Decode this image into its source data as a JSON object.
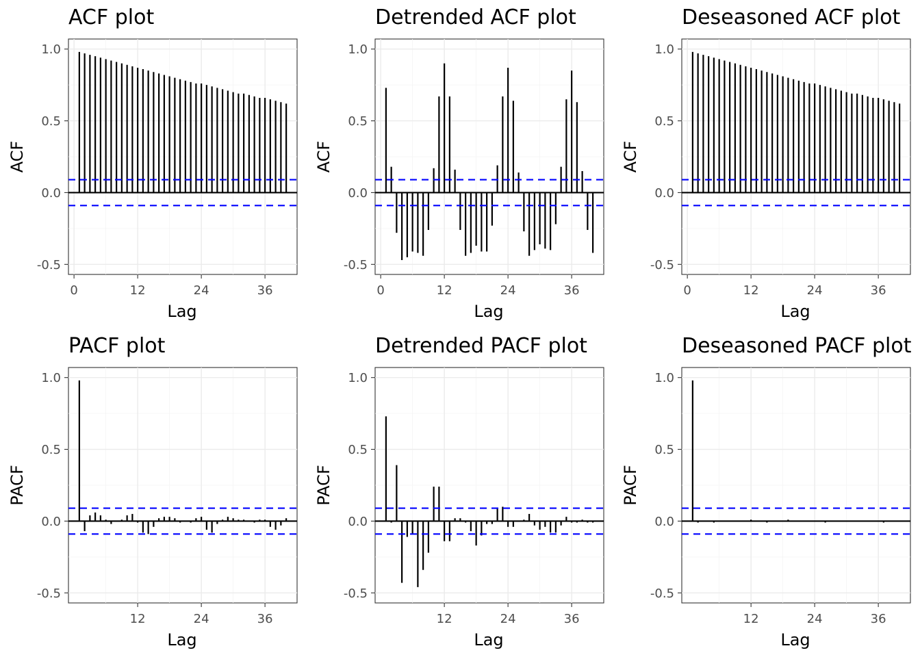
{
  "chart_data": [
    {
      "type": "bar",
      "title": "ACF plot",
      "xlabel": "Lag",
      "ylabel": "ACF",
      "ylim": [
        -0.5,
        1.0
      ],
      "yticks": [
        -0.5,
        0.0,
        0.5,
        1.0
      ],
      "ytick_labels": [
        "-0.5",
        "0.0",
        "0.5",
        "1.0"
      ],
      "xticks": [
        0,
        12,
        24,
        36
      ],
      "xtick_labels": [
        "0",
        "12",
        "24",
        "36"
      ],
      "ci": 0.09,
      "series": [
        {
          "lags": [
            1,
            2,
            3,
            4,
            5,
            6,
            7,
            8,
            9,
            10,
            11,
            12,
            13,
            14,
            15,
            16,
            17,
            18,
            19,
            20,
            21,
            22,
            23,
            24,
            25,
            26,
            27,
            28,
            29,
            30,
            31,
            32,
            33,
            34,
            35,
            36,
            37,
            38,
            39,
            40
          ],
          "values": [
            0.98,
            0.97,
            0.96,
            0.95,
            0.94,
            0.93,
            0.92,
            0.91,
            0.9,
            0.89,
            0.88,
            0.87,
            0.86,
            0.85,
            0.84,
            0.83,
            0.82,
            0.81,
            0.8,
            0.79,
            0.78,
            0.77,
            0.76,
            0.76,
            0.75,
            0.74,
            0.73,
            0.72,
            0.71,
            0.7,
            0.69,
            0.69,
            0.68,
            0.67,
            0.66,
            0.66,
            0.65,
            0.64,
            0.63,
            0.62
          ]
        }
      ]
    },
    {
      "type": "bar",
      "title": "Detrended ACF plot",
      "xlabel": "Lag",
      "ylabel": "ACF",
      "ylim": [
        -0.5,
        1.0
      ],
      "yticks": [
        -0.5,
        0.0,
        0.5,
        1.0
      ],
      "ytick_labels": [
        "-0.5",
        "0.0",
        "0.5",
        "1.0"
      ],
      "xticks": [
        0,
        12,
        24,
        36
      ],
      "xtick_labels": [
        "0",
        "12",
        "24",
        "36"
      ],
      "ci": 0.09,
      "series": [
        {
          "lags": [
            1,
            2,
            3,
            4,
            5,
            6,
            7,
            8,
            9,
            10,
            11,
            12,
            13,
            14,
            15,
            16,
            17,
            18,
            19,
            20,
            21,
            22,
            23,
            24,
            25,
            26,
            27,
            28,
            29,
            30,
            31,
            32,
            33,
            34,
            35,
            36,
            37,
            38,
            39,
            40
          ],
          "values": [
            0.73,
            0.18,
            -0.28,
            -0.47,
            -0.45,
            -0.41,
            -0.42,
            -0.44,
            -0.26,
            0.17,
            0.67,
            0.9,
            0.67,
            0.16,
            -0.26,
            -0.44,
            -0.42,
            -0.37,
            -0.41,
            -0.41,
            -0.23,
            0.19,
            0.67,
            0.87,
            0.64,
            0.14,
            -0.27,
            -0.44,
            -0.4,
            -0.36,
            -0.39,
            -0.4,
            -0.22,
            0.18,
            0.65,
            0.85,
            0.63,
            0.15,
            -0.26,
            -0.42
          ]
        }
      ]
    },
    {
      "type": "bar",
      "title": "Deseasoned ACF plot",
      "xlabel": "Lag",
      "ylabel": "ACF",
      "ylim": [
        -0.5,
        1.0
      ],
      "yticks": [
        -0.5,
        0.0,
        0.5,
        1.0
      ],
      "ytick_labels": [
        "-0.5",
        "0.0",
        "0.5",
        "1.0"
      ],
      "xticks": [
        0,
        12,
        24,
        36
      ],
      "xtick_labels": [
        "0",
        "12",
        "24",
        "36"
      ],
      "ci": 0.09,
      "series": [
        {
          "lags": [
            1,
            2,
            3,
            4,
            5,
            6,
            7,
            8,
            9,
            10,
            11,
            12,
            13,
            14,
            15,
            16,
            17,
            18,
            19,
            20,
            21,
            22,
            23,
            24,
            25,
            26,
            27,
            28,
            29,
            30,
            31,
            32,
            33,
            34,
            35,
            36,
            37,
            38,
            39,
            40
          ],
          "values": [
            0.98,
            0.97,
            0.96,
            0.95,
            0.94,
            0.93,
            0.92,
            0.91,
            0.9,
            0.89,
            0.88,
            0.87,
            0.86,
            0.85,
            0.84,
            0.83,
            0.82,
            0.81,
            0.8,
            0.79,
            0.78,
            0.77,
            0.76,
            0.76,
            0.75,
            0.74,
            0.73,
            0.72,
            0.71,
            0.7,
            0.69,
            0.69,
            0.68,
            0.67,
            0.66,
            0.66,
            0.65,
            0.64,
            0.63,
            0.62
          ]
        }
      ]
    },
    {
      "type": "bar",
      "title": "PACF plot",
      "xlabel": "Lag",
      "ylabel": "PACF",
      "ylim": [
        -0.5,
        1.0
      ],
      "yticks": [
        -0.5,
        0.0,
        0.5,
        1.0
      ],
      "ytick_labels": [
        "-0.5",
        "0.0",
        "0.5",
        "1.0"
      ],
      "xticks": [
        12,
        24,
        36
      ],
      "xtick_labels": [
        "12",
        "24",
        "36"
      ],
      "ci": 0.09,
      "series": [
        {
          "lags": [
            1,
            2,
            3,
            4,
            5,
            6,
            7,
            8,
            9,
            10,
            11,
            12,
            13,
            14,
            15,
            16,
            17,
            18,
            19,
            20,
            21,
            22,
            23,
            24,
            25,
            26,
            27,
            28,
            29,
            30,
            31,
            32,
            33,
            34,
            35,
            36,
            37,
            38,
            39,
            40
          ],
          "values": [
            0.98,
            -0.07,
            0.04,
            0.06,
            0.04,
            0.01,
            -0.02,
            0.0,
            0.01,
            0.04,
            0.05,
            -0.01,
            -0.08,
            -0.09,
            -0.04,
            0.02,
            0.03,
            0.03,
            0.02,
            -0.01,
            0.0,
            -0.01,
            0.02,
            0.03,
            -0.06,
            -0.08,
            -0.02,
            0.01,
            0.03,
            0.02,
            0.01,
            0.01,
            0.0,
            -0.01,
            0.01,
            0.01,
            -0.04,
            -0.06,
            -0.03,
            0.02
          ]
        }
      ]
    },
    {
      "type": "bar",
      "title": "Detrended PACF plot",
      "xlabel": "Lag",
      "ylabel": "PACF",
      "ylim": [
        -0.5,
        1.0
      ],
      "yticks": [
        -0.5,
        0.0,
        0.5,
        1.0
      ],
      "ytick_labels": [
        "-0.5",
        "0.0",
        "0.5",
        "1.0"
      ],
      "xticks": [
        12,
        24,
        36
      ],
      "xtick_labels": [
        "12",
        "24",
        "36"
      ],
      "ci": 0.09,
      "series": [
        {
          "lags": [
            1,
            2,
            3,
            4,
            5,
            6,
            7,
            8,
            9,
            10,
            11,
            12,
            13,
            14,
            15,
            16,
            17,
            18,
            19,
            20,
            21,
            22,
            23,
            24,
            25,
            26,
            27,
            28,
            29,
            30,
            31,
            32,
            33,
            34,
            35,
            36,
            37,
            38,
            39,
            40
          ],
          "values": [
            0.73,
            -0.01,
            0.39,
            -0.43,
            -0.11,
            -0.09,
            -0.46,
            -0.34,
            -0.22,
            0.24,
            0.24,
            -0.14,
            -0.14,
            0.02,
            0.02,
            -0.01,
            -0.07,
            -0.17,
            -0.1,
            -0.02,
            -0.02,
            0.09,
            0.1,
            -0.04,
            -0.04,
            0.0,
            0.01,
            0.05,
            -0.03,
            -0.06,
            -0.04,
            -0.08,
            -0.08,
            -0.03,
            0.03,
            -0.01,
            -0.01,
            0.01,
            -0.01,
            -0.01
          ]
        }
      ]
    },
    {
      "type": "bar",
      "title": "Deseasoned PACF plot",
      "xlabel": "Lag",
      "ylabel": "PACF",
      "ylim": [
        -0.5,
        1.0
      ],
      "yticks": [
        -0.5,
        0.0,
        0.5,
        1.0
      ],
      "ytick_labels": [
        "-0.5",
        "0.0",
        "0.5",
        "1.0"
      ],
      "xticks": [
        12,
        24,
        36
      ],
      "xtick_labels": [
        "12",
        "24",
        "36"
      ],
      "ci": 0.09,
      "series": [
        {
          "lags": [
            1,
            2,
            3,
            4,
            5,
            6,
            7,
            8,
            9,
            10,
            11,
            12,
            13,
            14,
            15,
            16,
            17,
            18,
            19,
            20,
            21,
            22,
            23,
            24,
            25,
            26,
            27,
            28,
            29,
            30,
            31,
            32,
            33,
            34,
            35,
            36,
            37,
            38,
            39,
            40
          ],
          "values": [
            0.98,
            -0.01,
            0.0,
            0.0,
            -0.01,
            0.0,
            0.0,
            0.0,
            0.0,
            0.0,
            0.0,
            0.01,
            0.0,
            0.0,
            -0.01,
            0.0,
            0.0,
            0.0,
            0.01,
            0.0,
            0.0,
            0.0,
            0.0,
            0.0,
            0.0,
            -0.01,
            0.0,
            0.0,
            0.0,
            0.0,
            0.0,
            0.0,
            0.0,
            0.0,
            0.0,
            0.0,
            -0.01,
            0.0,
            0.0,
            0.0
          ]
        }
      ]
    }
  ]
}
